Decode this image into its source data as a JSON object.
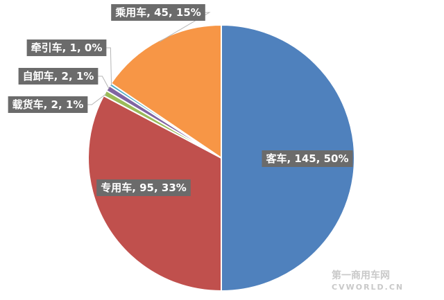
{
  "chart_data": {
    "type": "pie",
    "title": "",
    "slices": [
      {
        "name": "客车",
        "value": 145,
        "percent": "50%",
        "color": "#4f81bd",
        "label": "客车, 145, 50%"
      },
      {
        "name": "专用车",
        "value": 95,
        "percent": "33%",
        "color": "#c0504d",
        "label": "专用车, 95, 33%"
      },
      {
        "name": "载货车",
        "value": 2,
        "percent": "1%",
        "color": "#9bbb59",
        "label": "载货车, 2, 1%"
      },
      {
        "name": "自卸车",
        "value": 2,
        "percent": "1%",
        "color": "#8064a2",
        "label": "自卸车, 2, 1%"
      },
      {
        "name": "牵引车",
        "value": 1,
        "percent": "0%",
        "color": "#4bacc6",
        "label": "牵引车, 1, 0%"
      },
      {
        "name": "乘用车",
        "value": 45,
        "percent": "15%",
        "color": "#f79646",
        "label": "乘用车, 45, 15%"
      }
    ]
  },
  "watermark": {
    "logo_text": "第一商用车网",
    "logo_sub": "CVWORLD.CN"
  }
}
